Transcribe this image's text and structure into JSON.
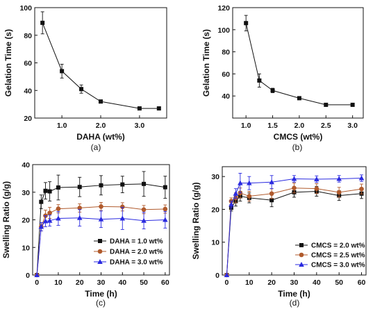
{
  "chart_data": [
    {
      "type": "line",
      "panel_label": "(a)",
      "xlabel": "DAHA (wt%)",
      "ylabel": "Gelation Time (s)",
      "xlim": [
        0.3,
        3.7
      ],
      "ylim": [
        20,
        100
      ],
      "xticks": [
        1.0,
        2.0,
        3.0
      ],
      "xtick_labels": [
        "1.0",
        "2.0",
        "3.0"
      ],
      "yticks": [
        20,
        40,
        60,
        80,
        100
      ],
      "ytick_labels": [
        "20",
        "40",
        "60",
        "80",
        "100"
      ],
      "grid": false,
      "series": [
        {
          "color": "#111111",
          "marker": "square",
          "x": [
            0.5,
            1.0,
            1.5,
            2.0,
            3.0,
            3.5
          ],
          "y": [
            89,
            54,
            41,
            32,
            27,
            27
          ],
          "err": [
            8,
            5,
            3,
            1,
            1,
            1
          ]
        }
      ]
    },
    {
      "type": "line",
      "panel_label": "(b)",
      "xlabel": "CMCS (wt%)",
      "ylabel": "Gelation Time (s)",
      "xlim": [
        0.75,
        3.2
      ],
      "ylim": [
        20,
        120
      ],
      "xticks": [
        1.0,
        1.5,
        2.0,
        2.5,
        3.0
      ],
      "xtick_labels": [
        "1.0",
        "1.5",
        "2.0",
        "2.5",
        "3.0"
      ],
      "yticks": [
        40,
        60,
        80,
        100,
        120
      ],
      "ytick_labels": [
        "40",
        "60",
        "80",
        "100",
        "120"
      ],
      "grid": false,
      "series": [
        {
          "color": "#111111",
          "marker": "square",
          "x": [
            1.0,
            1.25,
            1.5,
            2.0,
            2.5,
            3.0
          ],
          "y": [
            106,
            54,
            45,
            38,
            32,
            32
          ],
          "err": [
            7,
            6,
            2,
            1,
            1,
            1
          ]
        }
      ]
    },
    {
      "type": "line",
      "panel_label": "(c)",
      "xlabel": "Time (h)",
      "ylabel": "Swelling Ratio (g/g)",
      "xlim": [
        -2,
        62
      ],
      "ylim": [
        0,
        40
      ],
      "xticks": [
        0,
        10,
        20,
        30,
        40,
        50,
        60
      ],
      "xtick_labels": [
        "0",
        "10",
        "20",
        "30",
        "40",
        "50",
        "60"
      ],
      "yticks": [
        0,
        10,
        20,
        30,
        40
      ],
      "ytick_labels": [
        "0",
        "10",
        "20",
        "30",
        "40"
      ],
      "grid": false,
      "legend_position": "bottom-right",
      "series": [
        {
          "name": "DAHA = 1.0 wt%",
          "color": "#111111",
          "marker": "square",
          "x": [
            0,
            2,
            4,
            6,
            10,
            20,
            30,
            40,
            50,
            60
          ],
          "y": [
            0,
            26.5,
            30.5,
            30.3,
            31.7,
            31.9,
            32.5,
            32.8,
            33.0,
            31.8
          ],
          "err": [
            0,
            2.5,
            3,
            3.5,
            4.5,
            3.5,
            3.5,
            3,
            4.5,
            4
          ]
        },
        {
          "name": "DAHA = 2.0 wt%",
          "color": "#b05a2c",
          "marker": "circle",
          "x": [
            0,
            2,
            4,
            6,
            10,
            20,
            30,
            40,
            50,
            60
          ],
          "y": [
            0,
            17.5,
            21.5,
            22.5,
            24.0,
            24.3,
            24.8,
            24.7,
            23.7,
            23.9
          ],
          "err": [
            0,
            1.5,
            2,
            2,
            1.5,
            1.5,
            1.5,
            1.5,
            1.5,
            1.5
          ]
        },
        {
          "name": "DAHA = 3.0 wt%",
          "color": "#2a2ae0",
          "marker": "triangle",
          "x": [
            0,
            2,
            4,
            6,
            10,
            20,
            30,
            40,
            50,
            60
          ],
          "y": [
            0,
            17.5,
            19.5,
            19.7,
            20.5,
            20.7,
            20.2,
            20.5,
            19.7,
            20.0
          ],
          "err": [
            0,
            1.5,
            2,
            2,
            2.5,
            3,
            3,
            4,
            3,
            3
          ]
        }
      ]
    },
    {
      "type": "line",
      "panel_label": "(d)",
      "xlabel": "Time (h)",
      "ylabel": "Swelling Ratio (g/g)",
      "xlim": [
        -2,
        62
      ],
      "ylim": [
        0,
        33
      ],
      "xticks": [
        0,
        10,
        20,
        30,
        40,
        50,
        60
      ],
      "xtick_labels": [
        "0",
        "10",
        "20",
        "30",
        "40",
        "50",
        "60"
      ],
      "yticks": [
        0,
        10,
        20,
        30
      ],
      "ytick_labels": [
        "0",
        "10",
        "20",
        "30"
      ],
      "grid": false,
      "legend_position": "bottom-right",
      "series": [
        {
          "name": "CMCS = 2.0 wt%",
          "color": "#111111",
          "marker": "square",
          "x": [
            0,
            2,
            4,
            6,
            10,
            20,
            30,
            40,
            50,
            60
          ],
          "y": [
            0,
            20.5,
            22.5,
            24.0,
            23.5,
            22.8,
            25.2,
            25.5,
            24.2,
            24.8
          ],
          "err": [
            0,
            1,
            1.5,
            1.5,
            1.5,
            2,
            1.5,
            1.5,
            1.5,
            1.5
          ]
        },
        {
          "name": "CMCS = 2.5 wt%",
          "color": "#b05a2c",
          "marker": "circle",
          "x": [
            0,
            2,
            4,
            6,
            10,
            20,
            30,
            40,
            50,
            60
          ],
          "y": [
            0,
            22.5,
            23.5,
            25.0,
            24.0,
            24.8,
            26.5,
            26.3,
            25.2,
            26.2
          ],
          "err": [
            0,
            1,
            1.5,
            1.5,
            1.5,
            1.5,
            1.5,
            1.5,
            1.5,
            1.5
          ]
        },
        {
          "name": "CMCS = 3.0 wt%",
          "color": "#2a2ae0",
          "marker": "triangle",
          "x": [
            0,
            2,
            4,
            6,
            10,
            20,
            30,
            40,
            50,
            60
          ],
          "y": [
            0,
            21.5,
            24.8,
            28.0,
            28.0,
            28.3,
            29.3,
            29.2,
            29.3,
            29.5
          ],
          "err": [
            0,
            1,
            1.5,
            3,
            2,
            2,
            1,
            1,
            1,
            1
          ]
        }
      ]
    }
  ]
}
